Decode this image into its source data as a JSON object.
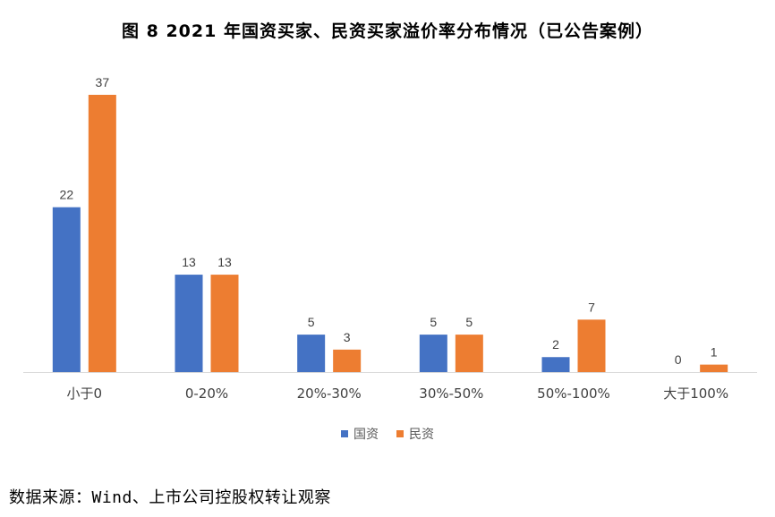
{
  "title": "图 8 2021 年国资买家、民资买家溢价率分布情况（已公告案例）",
  "source": "数据来源：Wind、上市公司控股权转让观察",
  "chart_data": {
    "type": "bar",
    "categories": [
      "小于0",
      "0-20%",
      "20%-30%",
      "30%-50%",
      "50%-100%",
      "大于100%"
    ],
    "series": [
      {
        "name": "国资",
        "values": [
          22,
          13,
          5,
          5,
          2,
          0
        ],
        "color": "#4472C4"
      },
      {
        "name": "民资",
        "values": [
          37,
          13,
          3,
          5,
          7,
          1
        ],
        "color": "#ED7D31"
      }
    ],
    "ylim": [
      0,
      37
    ],
    "grid": false,
    "legend_position": "bottom"
  }
}
